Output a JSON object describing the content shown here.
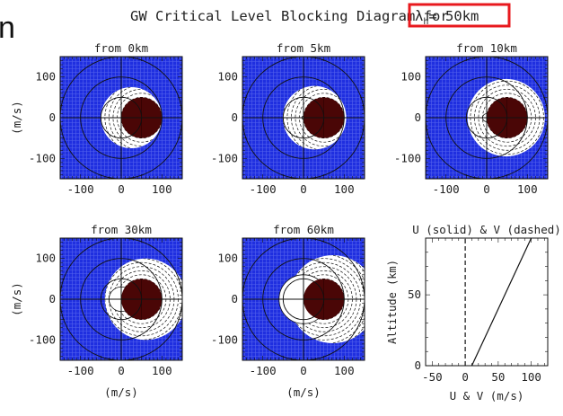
{
  "header": {
    "title_prefix": "GW Critical Level Blocking Diagram for",
    "lambda_symbol": "λ",
    "lambda_sub": "h",
    "lambda_value": "= 50km",
    "highlight_color": "#e8191e"
  },
  "cropped_letter": "n",
  "colors": {
    "blocked_region": "#1f2fe0",
    "blocked_grid": "#7f8cf5",
    "wind_disk": "#4a0606",
    "accessible": "#ffffff",
    "line": "#111111"
  },
  "chart_data": [
    {
      "type": "polar-blocking-map",
      "title": "from  0km",
      "xlabel": "",
      "ylabel": "(m/s)",
      "xlim": [
        -150,
        150
      ],
      "ylim": [
        -150,
        150
      ],
      "xticks": [
        "-100",
        "0",
        "100"
      ],
      "yticks": [
        "100",
        "0",
        "-100"
      ],
      "wind_center": [
        50,
        0
      ],
      "wind_radius": 50,
      "accessible_lobe": {
        "center": [
          25,
          0
        ],
        "radius": 75,
        "inner_cut_radius": 0
      }
    },
    {
      "type": "polar-blocking-map",
      "title": "from  5km",
      "xlabel": "",
      "ylabel": "",
      "xlim": [
        -150,
        150
      ],
      "ylim": [
        -150,
        150
      ],
      "xticks": [
        "-100",
        "0",
        "100"
      ],
      "yticks": [
        "100",
        "0",
        "-100"
      ],
      "wind_center": [
        50,
        0
      ],
      "wind_radius": 50,
      "accessible_lobe": {
        "center": [
          27,
          0
        ],
        "radius": 78,
        "inner_cut_radius": 4
      }
    },
    {
      "type": "polar-blocking-map",
      "title": "from 10km",
      "xlabel": "",
      "ylabel": "",
      "xlim": [
        -150,
        150
      ],
      "ylim": [
        -150,
        150
      ],
      "xticks": [
        "-100",
        "0",
        "100"
      ],
      "yticks": [
        "100",
        "0",
        "-100"
      ],
      "wind_center": [
        50,
        0
      ],
      "wind_radius": 50,
      "accessible_lobe": {
        "center": [
          48,
          0
        ],
        "radius": 95,
        "inner_cut_radius": 10
      }
    },
    {
      "type": "polar-blocking-map",
      "title": "from 30km",
      "xlabel": "(m/s)",
      "ylabel": "(m/s)",
      "xlim": [
        -150,
        150
      ],
      "ylim": [
        -150,
        150
      ],
      "xticks": [
        "-100",
        "0",
        "100"
      ],
      "yticks": [
        "100",
        "0",
        "-100"
      ],
      "wind_center": [
        50,
        0
      ],
      "wind_radius": 50,
      "accessible_lobe": {
        "center": [
          60,
          0
        ],
        "radius": 100,
        "inner_cut_radius": 30
      }
    },
    {
      "type": "polar-blocking-map",
      "title": "from 60km",
      "xlabel": "(m/s)",
      "ylabel": "",
      "xlim": [
        -150,
        150
      ],
      "ylim": [
        -150,
        150
      ],
      "xticks": [
        "-100",
        "0",
        "100"
      ],
      "yticks": [
        "100",
        "0",
        "-100"
      ],
      "wind_center": [
        50,
        0
      ],
      "wind_radius": 50,
      "accessible_lobe": {
        "center": [
          72,
          0
        ],
        "radius": 108,
        "inner_cut_radius": 60
      }
    },
    {
      "type": "line",
      "title": "U (solid) & V (dashed)",
      "xlabel": "U & V (m/s)",
      "ylabel": "Altitude (km)",
      "xlim": [
        -60,
        125
      ],
      "ylim": [
        0,
        90
      ],
      "xticks": [
        "-50",
        "0",
        "50",
        "100"
      ],
      "yticks": [
        "0",
        "50"
      ],
      "series": [
        {
          "name": "U",
          "style": "solid",
          "x": [
            10,
            100
          ],
          "y": [
            0,
            90
          ]
        },
        {
          "name": "V",
          "style": "dashed",
          "x": [
            0,
            0
          ],
          "y": [
            0,
            90
          ]
        }
      ]
    }
  ]
}
